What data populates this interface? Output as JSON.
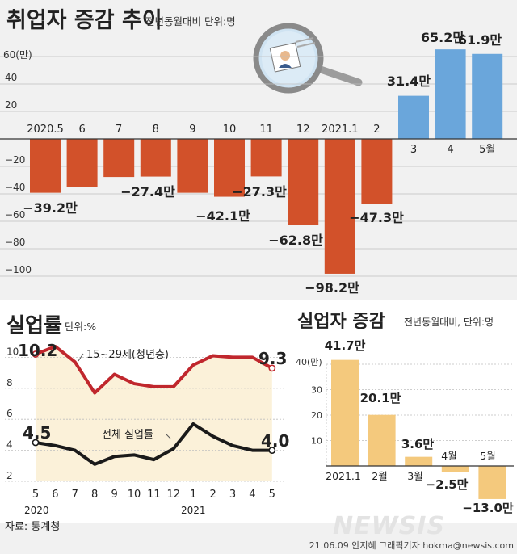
{
  "colors": {
    "negative_bar": "#d2512a",
    "positive_bar": "#6aa6db",
    "youth_line": "#c0272d",
    "total_line": "#1a1a1a",
    "youth_fill": "#fbf1d9",
    "unemployed_bar": "#f4c97d",
    "grid": "#bfbfbf"
  },
  "icons": [
    "magnifier-icon",
    "person-photo-icon",
    "newsis-logo-icon"
  ],
  "charts": {
    "employment": {
      "title": "취업자 증감 추이",
      "subtitle": "전년동월대비 단위:명",
      "y_unit_label": "60(만)",
      "y_ticks": [
        "40",
        "20",
        "−20",
        "−40",
        "−60",
        "−80",
        "−100"
      ],
      "labels": [
        "−39.2만",
        "",
        "",
        "−27.4만",
        "",
        "−42.1만",
        "−27.3만",
        "−62.8만",
        "−98.2만",
        "−47.3만",
        "31.4만",
        "65.2만",
        "61.9만"
      ],
      "x_labels": [
        "2020.5",
        "6",
        "7",
        "8",
        "9",
        "10",
        "11",
        "12",
        "2021.1",
        "2",
        "3",
        "4",
        "5월"
      ]
    },
    "unemployment_rate": {
      "title": "실업률",
      "subtitle": "단위:%",
      "y_ticks": [
        "10",
        "8",
        "6",
        "4",
        "2"
      ],
      "x_labels": [
        "5",
        "6",
        "7",
        "8",
        "9",
        "10",
        "11",
        "12",
        "1",
        "2",
        "3",
        "4",
        "5"
      ],
      "year_labels": [
        "2020",
        "2021"
      ],
      "youth_series_label": "15∼29세(청년층)",
      "total_series_label": "전체 실업률",
      "youth_start_label": "10.2",
      "youth_end_label": "9.3",
      "total_start_label": "4.5",
      "total_end_label": "4.0"
    },
    "unemployed": {
      "title": "실업자 증감",
      "subtitle": "전년동월대비, 단위:명",
      "y_unit_label": "40(만)",
      "y_ticks": [
        "30",
        "20",
        "10"
      ],
      "labels": [
        "41.7만",
        "20.1만",
        "3.6만",
        "−2.5만",
        "−13.0만"
      ],
      "x_labels": [
        "2021.1",
        "2월",
        "3월",
        "4월",
        "5월"
      ]
    }
  },
  "source": "자료: 통계청",
  "credit": "21.06.09 안지혜 그래픽기자 hokma@newsis.com",
  "logo_text": "NEWSIS",
  "chart_data": [
    {
      "type": "bar",
      "title": "취업자 증감 추이",
      "unit": "만명",
      "categories": [
        "2020.5",
        "6",
        "7",
        "8",
        "9",
        "10",
        "11",
        "12",
        "2021.1",
        "2",
        "3",
        "4",
        "5월"
      ],
      "values": [
        -39.2,
        -35.2,
        -27.7,
        -27.4,
        -39.2,
        -42.1,
        -27.3,
        -62.8,
        -98.2,
        -47.3,
        31.4,
        65.2,
        61.9
      ],
      "ylim": [
        -100,
        60
      ]
    },
    {
      "type": "line",
      "title": "실업률",
      "unit": "%",
      "x": [
        "2020.5",
        "2020.6",
        "2020.7",
        "2020.8",
        "2020.9",
        "2020.10",
        "2020.11",
        "2020.12",
        "2021.1",
        "2021.2",
        "2021.3",
        "2021.4",
        "2021.5"
      ],
      "series": [
        {
          "name": "15∼29세(청년층)",
          "values": [
            10.2,
            10.7,
            9.7,
            7.7,
            8.9,
            8.3,
            8.1,
            8.1,
            9.5,
            10.1,
            10.0,
            10.0,
            9.3
          ]
        },
        {
          "name": "전체 실업률",
          "values": [
            4.5,
            4.3,
            4.0,
            3.1,
            3.6,
            3.7,
            3.4,
            4.1,
            5.7,
            4.9,
            4.3,
            4.0,
            4.0
          ]
        }
      ],
      "ylim": [
        2,
        11
      ]
    },
    {
      "type": "bar",
      "title": "실업자 증감",
      "unit": "만명",
      "categories": [
        "2021.1",
        "2월",
        "3월",
        "4월",
        "5월"
      ],
      "values": [
        41.7,
        20.1,
        3.6,
        -2.5,
        -13.0
      ],
      "ylim": [
        -15,
        40
      ]
    }
  ]
}
